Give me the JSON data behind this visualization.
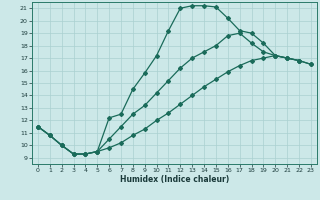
{
  "xlabel": "Humidex (Indice chaleur)",
  "bg_color": "#cce8e8",
  "line_color": "#1a6b5a",
  "grid_color": "#aad0d0",
  "xlim": [
    -0.5,
    23.5
  ],
  "ylim": [
    8.5,
    21.5
  ],
  "xticks": [
    0,
    1,
    2,
    3,
    4,
    5,
    6,
    7,
    8,
    9,
    10,
    11,
    12,
    13,
    14,
    15,
    16,
    17,
    18,
    19,
    20,
    21,
    22,
    23
  ],
  "yticks": [
    9,
    10,
    11,
    12,
    13,
    14,
    15,
    16,
    17,
    18,
    19,
    20,
    21
  ],
  "line1_x": [
    0,
    1,
    2,
    3,
    4,
    5,
    6,
    7,
    8,
    9,
    10,
    11,
    12,
    13,
    14,
    15,
    16,
    17,
    18,
    19,
    20,
    21,
    22
  ],
  "line1_y": [
    11.5,
    10.8,
    10.0,
    9.3,
    9.3,
    9.5,
    12.2,
    12.5,
    14.5,
    15.8,
    17.2,
    19.2,
    21.0,
    21.2,
    21.2,
    21.1,
    20.2,
    19.2,
    19.0,
    18.2,
    17.2,
    17.0,
    16.8
  ],
  "line2_x": [
    0,
    1,
    2,
    3,
    4,
    5,
    6,
    7,
    8,
    9,
    10,
    11,
    12,
    13,
    14,
    15,
    16,
    17,
    18,
    19,
    20,
    21,
    22,
    23
  ],
  "line2_y": [
    11.5,
    10.8,
    10.0,
    9.3,
    9.3,
    9.5,
    10.5,
    11.5,
    12.5,
    13.2,
    14.2,
    15.2,
    16.2,
    17.0,
    17.5,
    18.0,
    18.8,
    19.0,
    18.2,
    17.5,
    17.2,
    17.0,
    16.8,
    16.5
  ],
  "line3_x": [
    0,
    1,
    2,
    3,
    4,
    5,
    6,
    7,
    8,
    9,
    10,
    11,
    12,
    13,
    14,
    15,
    16,
    17,
    18,
    19,
    20,
    21,
    22,
    23
  ],
  "line3_y": [
    11.5,
    10.8,
    10.0,
    9.3,
    9.3,
    9.5,
    9.8,
    10.2,
    10.8,
    11.3,
    12.0,
    12.6,
    13.3,
    14.0,
    14.7,
    15.3,
    15.9,
    16.4,
    16.8,
    17.0,
    17.2,
    17.0,
    16.8,
    16.5
  ]
}
